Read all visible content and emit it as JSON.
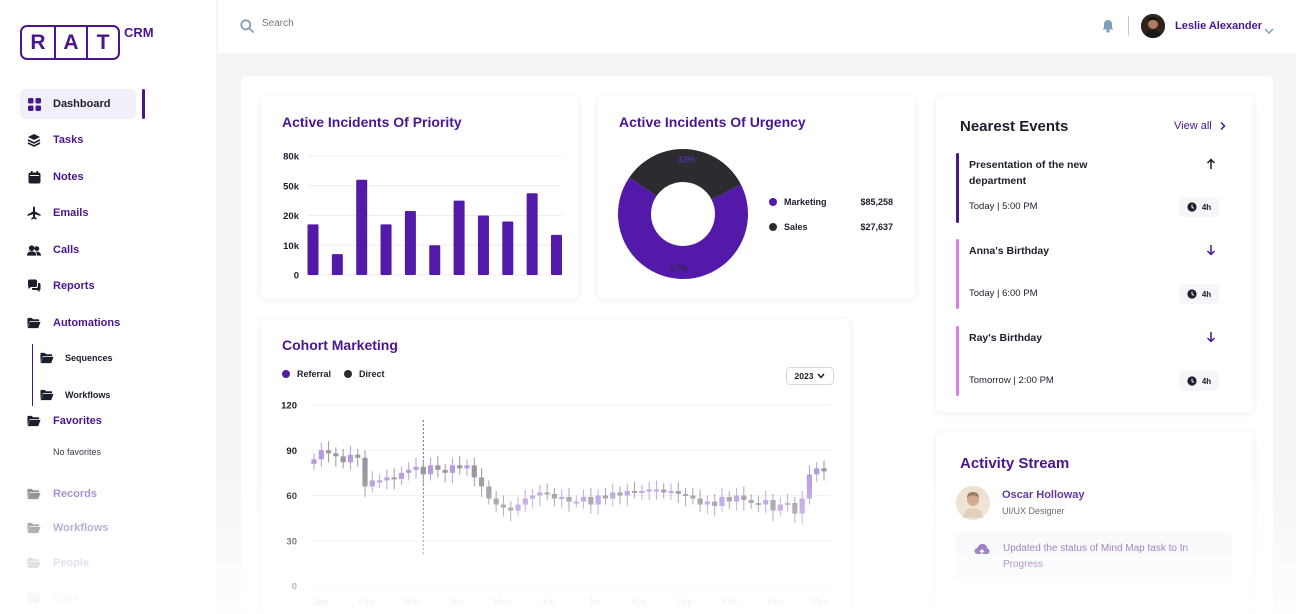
{
  "brand": {
    "letters": [
      "R",
      "A",
      "T"
    ],
    "suffix": "CRM"
  },
  "sidebar": {
    "items": [
      {
        "label": "Dashboard",
        "icon": "grid-icon"
      },
      {
        "label": "Tasks",
        "icon": "layers-icon"
      },
      {
        "label": "Notes",
        "icon": "calendar-icon"
      },
      {
        "label": "Emails",
        "icon": "plane-icon"
      },
      {
        "label": "Calls",
        "icon": "users-icon"
      },
      {
        "label": "Reports",
        "icon": "chat-icon"
      },
      {
        "label": "Automations",
        "icon": "folder-open-icon"
      }
    ],
    "sub_items": [
      {
        "label": "Sequences",
        "icon": "folder-open-icon"
      },
      {
        "label": "Workflows",
        "icon": "folder-open-icon"
      }
    ],
    "favorites": {
      "label": "Favorites",
      "empty": "No favorites"
    },
    "more_items": [
      {
        "label": "Records"
      },
      {
        "label": "Workflows"
      },
      {
        "label": "People"
      },
      {
        "label": "Lists"
      }
    ]
  },
  "header": {
    "search_placeholder": "Search",
    "user_name": "Leslie Alexander"
  },
  "priority_card": {
    "title": "Active Incidents Of Priority"
  },
  "urgency_card": {
    "title": "Active Incidents Of Urgency",
    "legend": [
      {
        "name": "Marketing",
        "value": "$85,258",
        "color": "#5319a8"
      },
      {
        "name": "Sales",
        "value": "$27,637",
        "color": "#2b2b30"
      }
    ]
  },
  "cohort_card": {
    "title": "Cohort Marketing",
    "legend": [
      {
        "name": "Referral",
        "color": "#5319a8"
      },
      {
        "name": "Direct",
        "color": "#2b2b30"
      }
    ],
    "year": "2023"
  },
  "events": {
    "title": "Nearest Events",
    "view_all": "View all",
    "items": [
      {
        "title": "Presentation of the new department",
        "time": "Today | 5:00 PM",
        "duration": "4h",
        "direction": "up",
        "color": "#4a168f"
      },
      {
        "title": "Anna's Birthday",
        "time": "Today | 6:00 PM",
        "duration": "4h",
        "direction": "down",
        "color": "#d77de8"
      },
      {
        "title": "Ray's Birthday",
        "time": "Tomorrow | 2:00 PM",
        "duration": "4h",
        "direction": "down",
        "color": "#d77de8"
      }
    ]
  },
  "activity": {
    "title": "Activity Stream",
    "name": "Oscar Holloway",
    "role": "UI/UX Designer",
    "message": "Updated the status of Mind Map task to In Progress"
  },
  "chart_data": [
    {
      "type": "bar",
      "title": "Active Incidents Of Priority",
      "ytick_labels": [
        "0",
        "10k",
        "20k",
        "50k",
        "80k"
      ],
      "values": [
        17,
        7,
        32,
        17,
        21.5,
        10,
        25,
        20,
        18,
        27.5,
        13.5
      ],
      "color": "#5319a8",
      "ylim": [
        0,
        40
      ]
    },
    {
      "type": "pie",
      "title": "Active Incidents Of Urgency",
      "slices": [
        {
          "name": "Marketing",
          "value": 67,
          "label": "67%",
          "color": "#5319a8"
        },
        {
          "name": "Sales",
          "value": 33,
          "label": "33%",
          "color": "#2b2b30"
        }
      ]
    },
    {
      "type": "candlestick",
      "title": "Cohort Marketing",
      "ylim": [
        0,
        120
      ],
      "yticks": [
        0,
        30,
        60,
        90,
        120
      ],
      "categories": [
        "Jan",
        "Feb",
        "Mar",
        "Apr",
        "May",
        "Jun",
        "Jul",
        "Aug",
        "Sep",
        "Oct",
        "Nov",
        "Dec"
      ],
      "marker_index": 15,
      "close": [
        84,
        90,
        88,
        86,
        82,
        87,
        85,
        66,
        70,
        70,
        72,
        71,
        75,
        77,
        79,
        74,
        80,
        77,
        75,
        80,
        78,
        80,
        72,
        66,
        58,
        54,
        52,
        50,
        54,
        58,
        60,
        62,
        61,
        58,
        59,
        56,
        56,
        59,
        54,
        60,
        58,
        62,
        60,
        63,
        62,
        63,
        64,
        64,
        62,
        63,
        61,
        60,
        58,
        54,
        56,
        53,
        59,
        56,
        60,
        57,
        55,
        54,
        57,
        50,
        54,
        55,
        48,
        58,
        74,
        78,
        76
      ]
    }
  ]
}
